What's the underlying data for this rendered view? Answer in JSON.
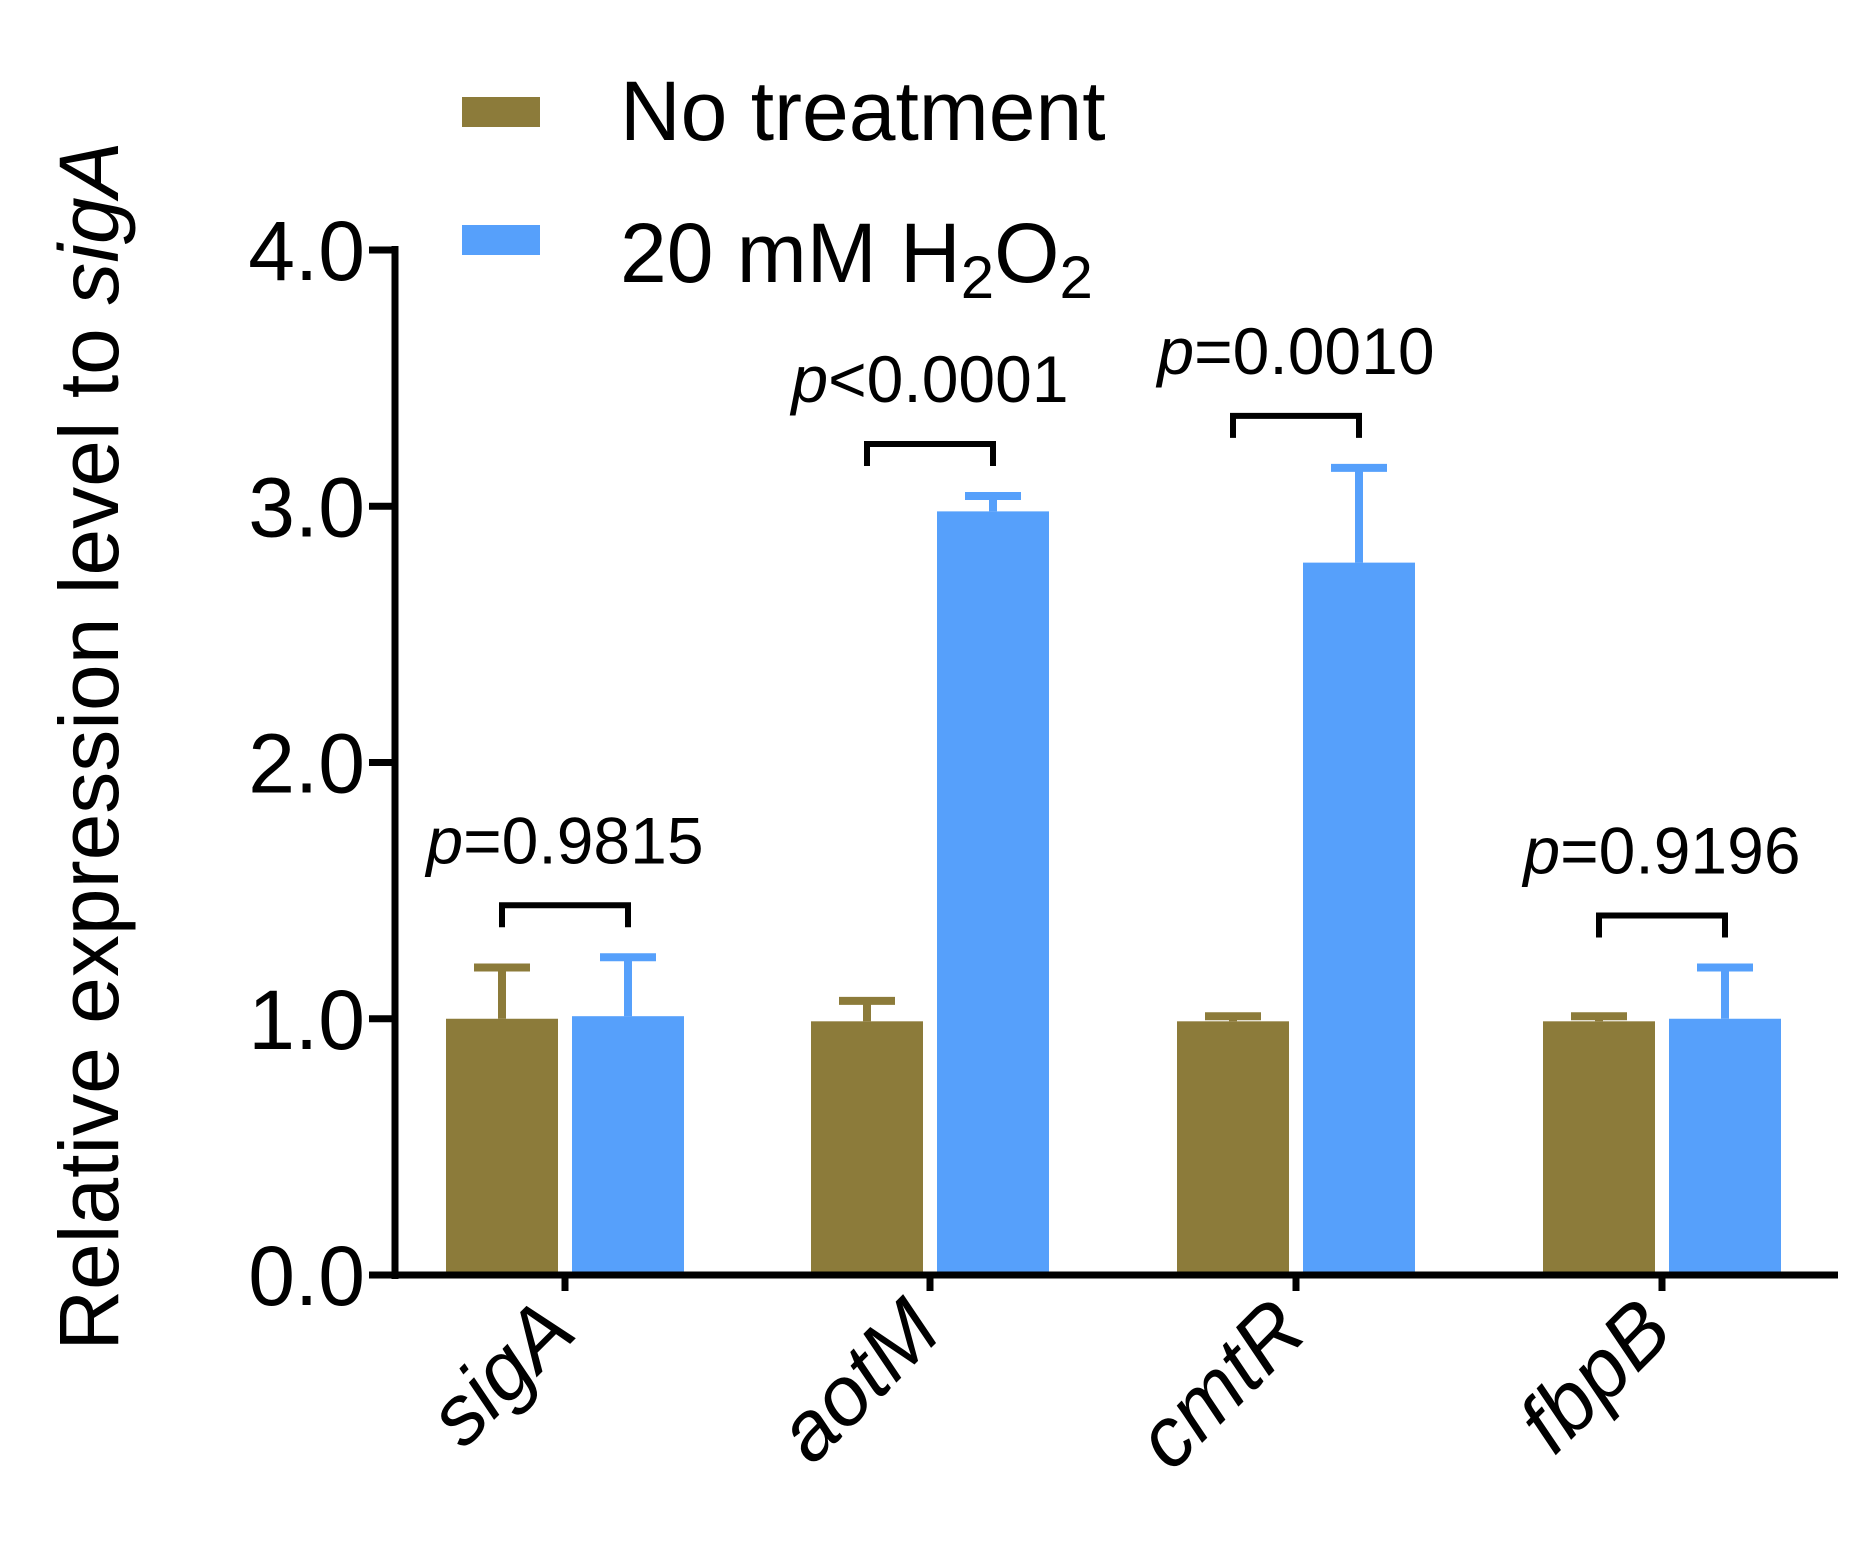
{
  "chart_data": {
    "type": "bar",
    "categories": [
      "sigA",
      "aotM",
      "cmtR",
      "fbpB"
    ],
    "series": [
      {
        "name": "No treatment",
        "color": "#8c7b3a",
        "values": [
          1.0,
          0.99,
          0.99,
          0.99
        ],
        "errors": [
          0.2,
          0.08,
          0.02,
          0.02
        ]
      },
      {
        "name": "20 mM H2O2",
        "color": "#56a0fb",
        "values": [
          1.01,
          2.98,
          2.78,
          1.0
        ],
        "errors": [
          0.23,
          0.06,
          0.37,
          0.2
        ]
      }
    ],
    "legend": {
      "entries": [
        {
          "label": "No treatment"
        },
        {
          "parts": [
            "20 mM H",
            "2",
            "O",
            "2"
          ]
        }
      ],
      "position": "top"
    },
    "ylabel": {
      "parts": [
        "Relative expression level to ",
        "sigA"
      ]
    },
    "xlabel": "",
    "ylim": [
      0,
      4
    ],
    "yticks": [
      "0.0",
      "1.0",
      "2.0",
      "3.0",
      "4.0"
    ],
    "yticks_values": [
      0,
      1,
      2,
      3,
      4
    ],
    "annotations": [
      {
        "category": "sigA",
        "p_symbol": "p",
        "text": "=0.9815"
      },
      {
        "category": "aotM",
        "p_symbol": "p",
        "text": "<0.0001"
      },
      {
        "category": "cmtR",
        "p_symbol": "p",
        "text": "=0.0010"
      },
      {
        "category": "fbpB",
        "p_symbol": "p",
        "text": "=0.9196"
      }
    ],
    "grid": false
  }
}
